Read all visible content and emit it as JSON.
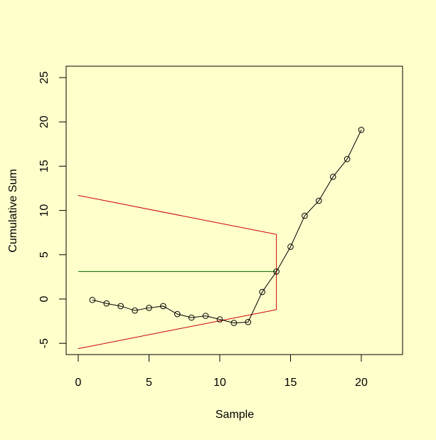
{
  "chart_data": {
    "type": "line",
    "title": "",
    "xlabel": "Sample",
    "ylabel": "Cumulative Sum",
    "xlim": [
      -0.85,
      22.9
    ],
    "ylim": [
      -6.2,
      26.3
    ],
    "x_ticks": [
      0,
      5,
      10,
      15,
      20
    ],
    "y_ticks": [
      -5,
      0,
      5,
      10,
      15,
      20,
      25
    ],
    "grid": false,
    "legend": null,
    "series": [
      {
        "name": "Cumulative Sum",
        "color": "#000000",
        "marker": "open-circle",
        "x": [
          1,
          2,
          3,
          4,
          5,
          6,
          7,
          8,
          9,
          10,
          11,
          12,
          13,
          14,
          15,
          16,
          17,
          18,
          19,
          20
        ],
        "values": [
          -0.1,
          -0.5,
          -0.8,
          -1.3,
          -1.0,
          -0.8,
          -1.7,
          -2.1,
          -1.9,
          -2.3,
          -2.7,
          -2.6,
          0.8,
          3.1,
          5.9,
          9.4,
          11.1,
          13.8,
          15.8,
          19.1
        ]
      }
    ],
    "annotations": [
      {
        "name": "V-mask upper arm",
        "color": "#cc0000",
        "points": [
          [
            0,
            11.7
          ],
          [
            14,
            7.3
          ]
        ]
      },
      {
        "name": "V-mask lower arm",
        "color": "#cc0000",
        "points": [
          [
            0,
            -5.6
          ],
          [
            14,
            -1.2
          ]
        ]
      },
      {
        "name": "V-mask vertical",
        "color": "#cc0000",
        "points": [
          [
            14,
            7.3
          ],
          [
            14,
            -1.2
          ]
        ]
      },
      {
        "name": "Reference level",
        "color": "#006600",
        "points": [
          [
            0,
            3.1
          ],
          [
            14,
            3.1
          ]
        ]
      }
    ]
  },
  "colors": {
    "background": "#ffffcc",
    "vmask": "#cc0000",
    "reference": "#006600",
    "series": "#000000"
  }
}
